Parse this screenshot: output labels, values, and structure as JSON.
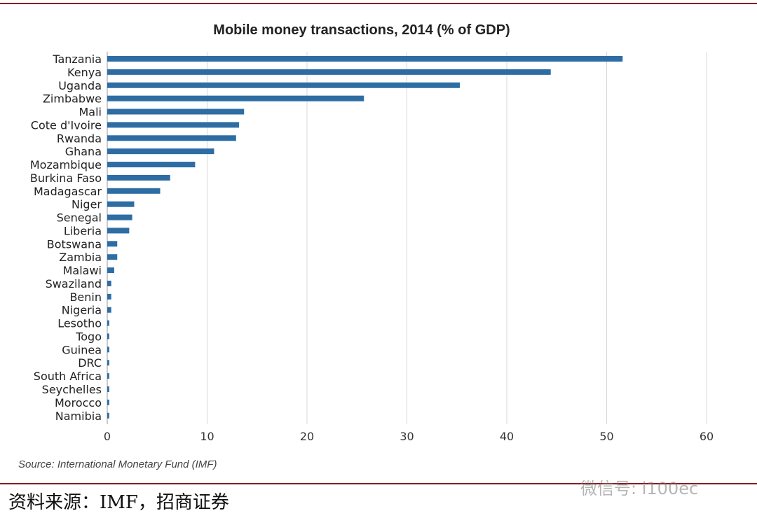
{
  "chart_data": {
    "type": "bar",
    "orientation": "horizontal",
    "title": "Mobile money transactions, 2014 (% of GDP)",
    "categories": [
      "Tanzania",
      "Kenya",
      "Uganda",
      "Zimbabwe",
      "Mali",
      "Cote d'Ivoire",
      "Rwanda",
      "Ghana",
      "Mozambique",
      "Burkina Faso",
      "Madagascar",
      "Niger",
      "Senegal",
      "Liberia",
      "Botswana",
      "Zambia",
      "Malawi",
      "Swaziland",
      "Benin",
      "Nigeria",
      "Lesotho",
      "Togo",
      "Guinea",
      "DRC",
      "South Africa",
      "Seychelles",
      "Morocco",
      "Namibia"
    ],
    "values": [
      51.6,
      44.4,
      35.3,
      25.7,
      13.7,
      13.2,
      12.9,
      10.7,
      8.8,
      6.3,
      5.3,
      2.7,
      2.5,
      2.2,
      1.0,
      1.0,
      0.7,
      0.4,
      0.4,
      0.4,
      0.2,
      0.2,
      0.2,
      0.2,
      0.2,
      0.2,
      0.2,
      0.2
    ],
    "xlim": [
      0,
      60
    ],
    "xticks": [
      0,
      10,
      20,
      30,
      40,
      50,
      60
    ],
    "grid": "vertical",
    "bar_color": "#2e6da4",
    "grid_color": "#d8d8d8"
  },
  "source": "Source: International Monetary Fund (IMF)",
  "caption": "资料来源：IMF，招商证券",
  "watermark": "微信号: i100ec",
  "colors": {
    "rule": "#8b1a1a"
  }
}
